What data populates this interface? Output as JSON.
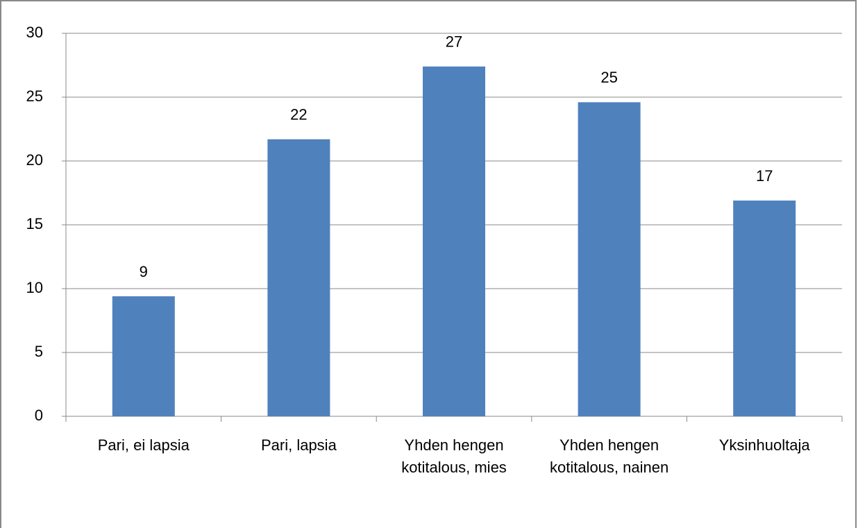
{
  "chart_data": {
    "type": "bar",
    "categories": [
      "Pari, ei lapsia",
      "Pari, lapsia",
      "Yhden hengen kotitalous, mies",
      "Yhden hengen kotitalous, nainen",
      "Yksinhuoltaja"
    ],
    "values": [
      9.4,
      21.7,
      27.4,
      24.6,
      16.9
    ],
    "value_labels": [
      "9",
      "22",
      "27",
      "25",
      "17"
    ],
    "color": "#4f81bd",
    "ylim": [
      0,
      30
    ],
    "yticks": [
      0,
      5,
      10,
      15,
      20,
      25,
      30
    ],
    "grid": true
  }
}
